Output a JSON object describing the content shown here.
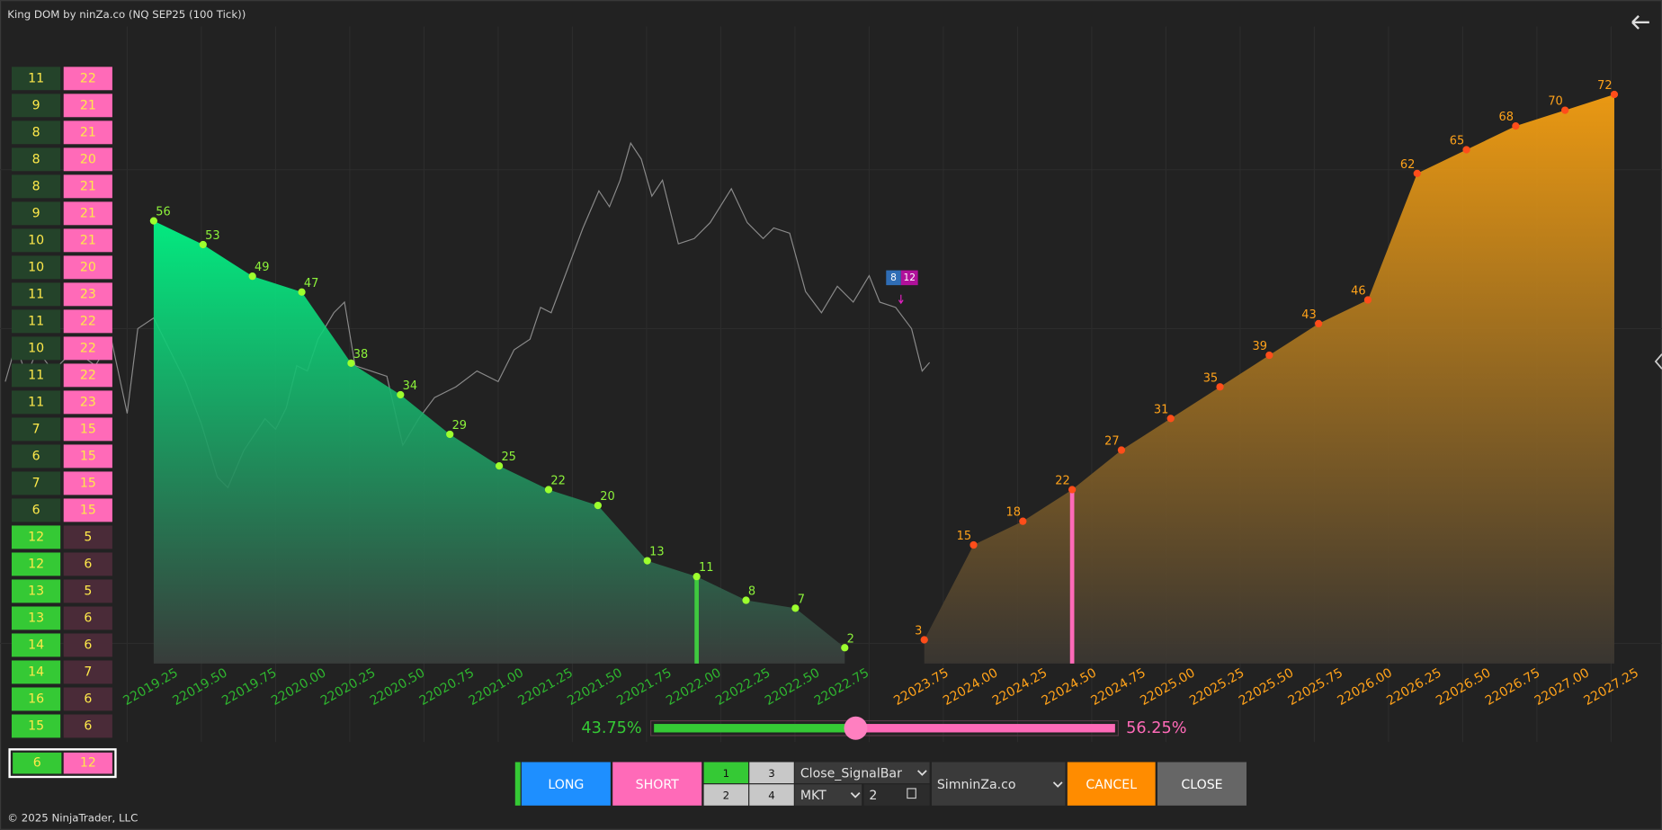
{
  "window": {
    "title": "King DOM by ninZa.co (NQ SEP25 (100 Tick))",
    "footer": "© 2025 NinjaTrader, LLC"
  },
  "dom_ladder": {
    "rows": [
      [
        11,
        22
      ],
      [
        9,
        21
      ],
      [
        8,
        21
      ],
      [
        8,
        20
      ],
      [
        8,
        21
      ],
      [
        9,
        21
      ],
      [
        10,
        21
      ],
      [
        10,
        20
      ],
      [
        11,
        23
      ],
      [
        11,
        22
      ],
      [
        10,
        22
      ],
      [
        11,
        22
      ],
      [
        11,
        23
      ],
      [
        7,
        15
      ],
      [
        6,
        15
      ],
      [
        7,
        15
      ],
      [
        6,
        15
      ],
      [
        12,
        5
      ],
      [
        12,
        6
      ],
      [
        13,
        5
      ],
      [
        13,
        6
      ],
      [
        14,
        6
      ],
      [
        14,
        7
      ],
      [
        16,
        6
      ],
      [
        15,
        6
      ]
    ],
    "total": [
      6,
      12
    ]
  },
  "depth": {
    "bid": {
      "prices": [
        "22019.25",
        "22019.50",
        "22019.75",
        "22020.00",
        "22020.25",
        "22020.50",
        "22020.75",
        "22021.00",
        "22021.25",
        "22021.50",
        "22021.75",
        "22022.00",
        "22022.25",
        "22022.50",
        "22022.75"
      ],
      "sizes": [
        56,
        53,
        49,
        47,
        38,
        34,
        29,
        25,
        22,
        20,
        13,
        11,
        8,
        7,
        2
      ],
      "marker_price": "22022.00"
    },
    "ask": {
      "prices": [
        "22023.75",
        "22024.00",
        "22024.25",
        "22024.50",
        "22024.75",
        "22025.00",
        "22025.25",
        "22025.50",
        "22025.75",
        "22026.00",
        "22026.25",
        "22026.50",
        "22026.75",
        "22027.00",
        "22027.25"
      ],
      "sizes": [
        3,
        15,
        18,
        22,
        27,
        31,
        35,
        39,
        43,
        46,
        62,
        65,
        68,
        70,
        72
      ],
      "marker_price": "22024.50"
    }
  },
  "badge": {
    "bid": 8,
    "ask": 12
  },
  "slider": {
    "bid": {
      "value": 43.75,
      "label": "43.75%"
    },
    "ask": {
      "value": 56.25,
      "label": "56.25%"
    }
  },
  "order_bar": {
    "long": "LONG",
    "short": "SHORT",
    "presets": [
      "1",
      "3",
      "2",
      "4"
    ],
    "strategy": "Close_SignalBar",
    "order_type": "MKT",
    "quantity": "2",
    "account": "SimninZa.co",
    "cancel": "CANCEL",
    "close": "CLOSE"
  }
}
